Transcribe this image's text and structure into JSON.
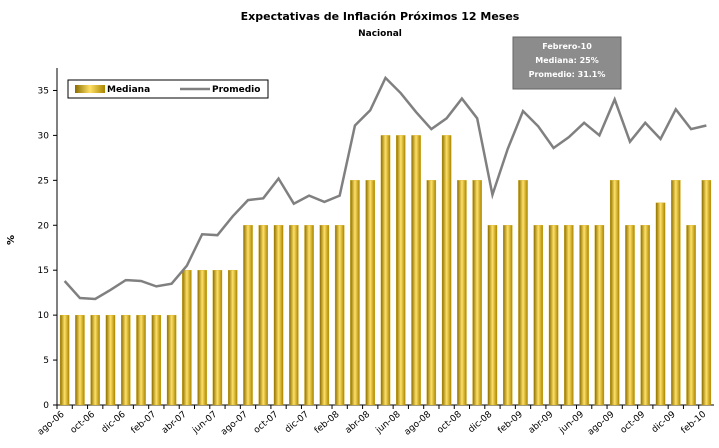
{
  "chart_data": {
    "type": "bar_line",
    "title": "Expectativas de Inflación Próximos 12 Meses",
    "subtitle": "Nacional",
    "y_label": "%",
    "annotation": [
      "Febrero-10",
      "Mediana: 25%",
      "Promedio: 31.1%"
    ],
    "categories": [
      "ago-06",
      null,
      "oct-06",
      null,
      "dic-06",
      null,
      "feb-07",
      null,
      "abr-07",
      null,
      "jun-07",
      null,
      "ago-07",
      null,
      "oct-07",
      null,
      "dic-07",
      null,
      "feb-08",
      null,
      "abr-08",
      null,
      "jun-08",
      null,
      "ago-08",
      null,
      "oct-08",
      null,
      "dic-08",
      null,
      "feb-09",
      null,
      "abr-09",
      null,
      "jun-09",
      null,
      "ago-09",
      null,
      "oct-09",
      null,
      "dic-09",
      null,
      "feb-10"
    ],
    "series": [
      {
        "name": "Mediana",
        "type": "bar",
        "color": "#d4a800",
        "values": [
          10,
          10,
          10,
          10,
          10,
          10,
          10,
          10,
          15,
          15,
          15,
          15,
          20,
          20,
          20,
          20,
          20,
          20,
          20,
          25,
          25,
          30,
          30,
          30,
          25,
          30,
          25,
          25,
          20,
          20,
          25,
          20,
          20,
          20,
          20,
          20,
          25,
          20,
          20,
          22.5,
          25,
          20,
          25
        ]
      },
      {
        "name": "Promedio",
        "type": "line",
        "color": "#808080",
        "values": [
          13.8,
          11.9,
          11.8,
          12.8,
          13.9,
          13.8,
          13.2,
          13.5,
          15.5,
          19.0,
          18.9,
          21.0,
          22.8,
          23.0,
          25.2,
          22.4,
          23.3,
          22.6,
          23.3,
          31.1,
          32.8,
          36.4,
          34.7,
          32.6,
          30.7,
          31.9,
          34.1,
          31.9,
          23.4,
          28.5,
          32.7,
          31.0,
          28.6,
          29.8,
          31.4,
          30.0,
          34.0,
          29.3,
          31.4,
          29.6,
          32.9,
          30.7,
          31.1
        ]
      }
    ],
    "ylim": [
      0,
      37.5
    ],
    "yticks": [
      0,
      5,
      10,
      15,
      20,
      25,
      30,
      35
    ],
    "grid": false,
    "legend": "top-left"
  }
}
